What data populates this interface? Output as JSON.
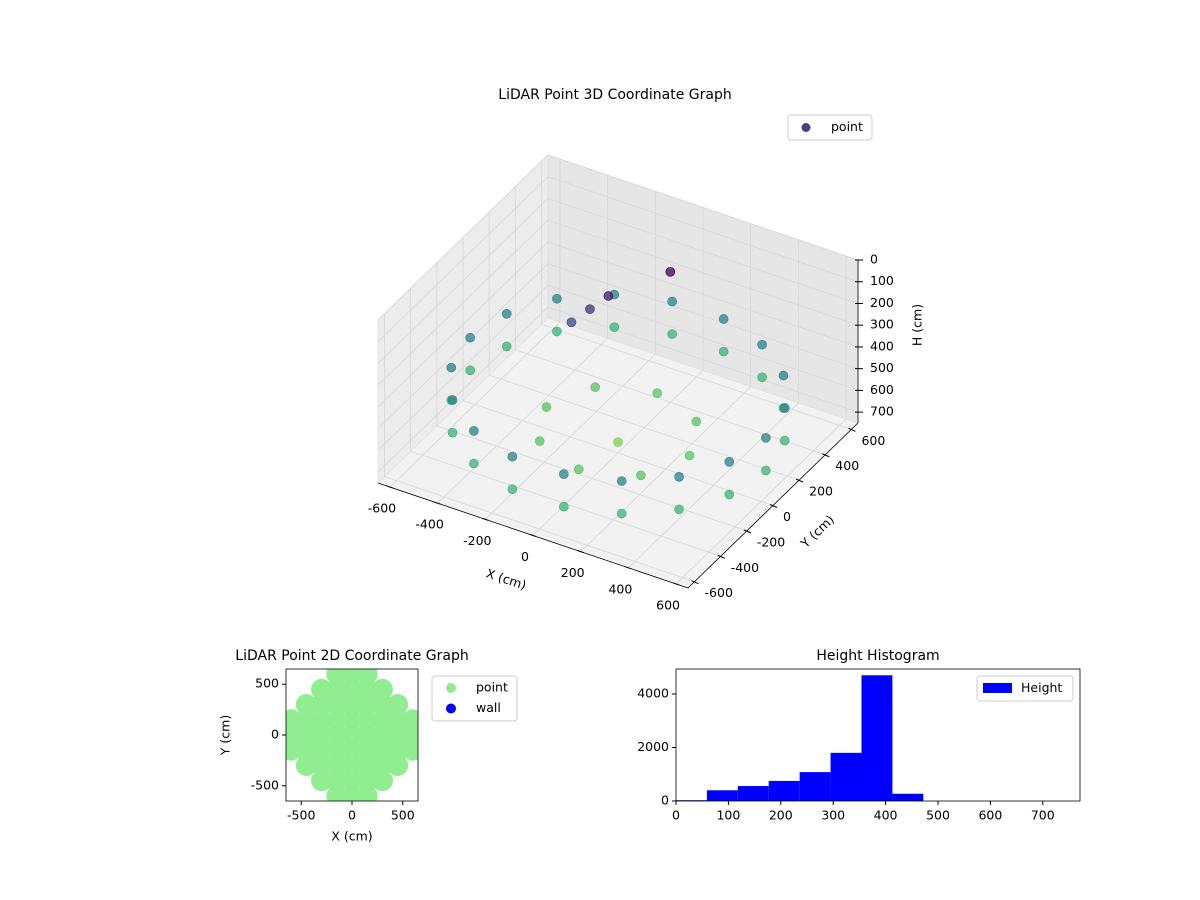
{
  "chart_data": [
    {
      "type": "scatter3d",
      "title": "LiDAR Point 3D Coordinate Graph",
      "x_label": "X (cm)",
      "y_label": "Y (cm)",
      "z_label": "H (cm)",
      "xlim": [
        -650,
        650
      ],
      "ylim": [
        -650,
        650
      ],
      "zlim": [
        0,
        750
      ],
      "z_inverted": true,
      "xticks": [
        -600,
        -400,
        -200,
        0,
        200,
        400,
        600
      ],
      "yticks": [
        -600,
        -400,
        -200,
        0,
        200,
        400,
        600
      ],
      "zticks": [
        0,
        100,
        200,
        300,
        400,
        500,
        600,
        700
      ],
      "legend": "upper right",
      "series": [
        {
          "name": "point",
          "color": "#414487",
          "x": [
            620,
            583,
            475,
            310,
            108,
            -108,
            -310,
            -475,
            -583,
            -620,
            -583,
            -475,
            -310,
            -108,
            108,
            310,
            475,
            583,
            620,
            583,
            475,
            310,
            108,
            -108,
            -310,
            -475,
            -583,
            -620,
            -583,
            -475,
            -310,
            -108,
            108,
            310,
            475,
            583,
            300,
            212,
            0,
            -212,
            -300,
            -212,
            0,
            212,
            0,
            -200,
            -250,
            -150,
            0
          ],
          "y": [
            0,
            212,
            399,
            537,
            611,
            611,
            537,
            399,
            212,
            0,
            -212,
            -399,
            -537,
            -611,
            -611,
            -537,
            -399,
            -212,
            0,
            212,
            399,
            537,
            611,
            611,
            537,
            399,
            212,
            0,
            -212,
            -399,
            -537,
            -611,
            -611,
            -537,
            -399,
            -212,
            0,
            212,
            300,
            212,
            0,
            -212,
            -300,
            -212,
            0,
            150,
            100,
            200,
            400
          ],
          "z": [
            450,
            450,
            450,
            450,
            450,
            450,
            450,
            450,
            450,
            450,
            450,
            450,
            450,
            450,
            450,
            450,
            450,
            450,
            600,
            600,
            600,
            600,
            600,
            600,
            600,
            600,
            600,
            600,
            600,
            600,
            600,
            600,
            600,
            600,
            600,
            600,
            650,
            650,
            650,
            650,
            650,
            650,
            650,
            650,
            700,
            250,
            300,
            200,
            150
          ]
        }
      ]
    },
    {
      "type": "scatter",
      "title": "LiDAR Point 2D Coordinate Graph",
      "x_label": "X (cm)",
      "y_label": "Y (cm)",
      "xlim": [
        -650,
        650
      ],
      "ylim": [
        -650,
        650
      ],
      "xticks": [
        -500,
        0,
        500
      ],
      "yticks": [
        -500,
        0,
        500
      ],
      "legend": "outside right",
      "series": [
        {
          "name": "point",
          "color": "#90ee90",
          "x": [
            -150,
            0,
            150,
            -300,
            -150,
            0,
            150,
            300,
            -450,
            -300,
            -150,
            0,
            150,
            300,
            450,
            -600,
            -450,
            -300,
            -150,
            0,
            150,
            300,
            450,
            600,
            -600,
            -450,
            -300,
            -150,
            0,
            150,
            300,
            450,
            600,
            -600,
            -450,
            -300,
            -150,
            0,
            150,
            300,
            450,
            600,
            -450,
            -300,
            -150,
            0,
            150,
            300,
            450,
            -300,
            -150,
            0,
            150,
            300,
            -150,
            0,
            150
          ],
          "y": [
            600,
            600,
            600,
            450,
            450,
            450,
            450,
            450,
            300,
            300,
            300,
            300,
            300,
            300,
            300,
            150,
            150,
            150,
            150,
            150,
            150,
            150,
            150,
            150,
            0,
            0,
            0,
            0,
            0,
            0,
            0,
            0,
            0,
            -150,
            -150,
            -150,
            -150,
            -150,
            -150,
            -150,
            -150,
            -150,
            -300,
            -300,
            -300,
            -300,
            -300,
            -300,
            -300,
            -450,
            -450,
            -450,
            -450,
            -450,
            -600,
            -600,
            -600
          ]
        },
        {
          "name": "wall",
          "color": "#0000ff",
          "x": [],
          "y": []
        }
      ]
    },
    {
      "type": "histogram",
      "title": "Height Histogram",
      "xlim": [
        0,
        771
      ],
      "ylim": [
        0,
        4935
      ],
      "xticks": [
        0,
        100,
        200,
        300,
        400,
        500,
        600,
        700
      ],
      "yticks": [
        0,
        2000,
        4000
      ],
      "legend": "upper right",
      "series": [
        {
          "name": "Height",
          "color": "#0000ff",
          "bins": [
            0,
            59,
            118,
            177,
            236,
            295,
            354,
            413,
            472,
            531,
            590,
            649,
            708,
            767
          ],
          "counts": [
            30,
            400,
            560,
            750,
            1080,
            1800,
            4700,
            270,
            0,
            0,
            0,
            0,
            0
          ]
        }
      ]
    }
  ]
}
